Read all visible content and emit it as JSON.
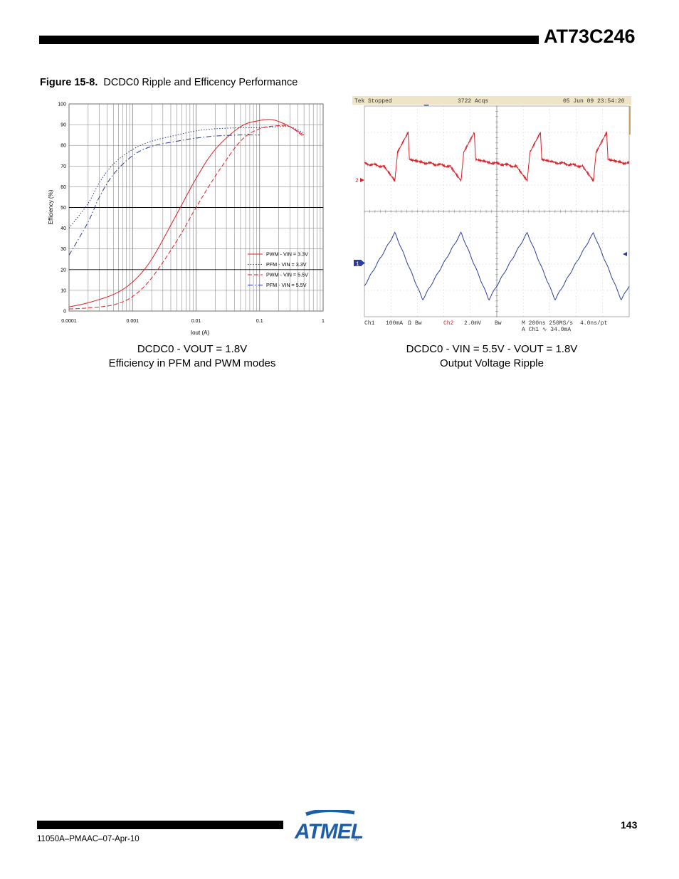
{
  "header": {
    "title": "AT73C246"
  },
  "figure": {
    "label": "Figure 15-8.",
    "title": "DCDC0 Ripple and Efficency Performance",
    "left_caption_line1": "DCDC0 - VOUT = 1.8V",
    "left_caption_line2": "Efficiency in PFM and PWM modes",
    "right_caption_line1": "DCDC0 - VIN = 5.5V - VOUT = 1.8V",
    "right_caption_line2": "Output Voltage Ripple"
  },
  "chart_data": [
    {
      "type": "line",
      "xlabel": "Iout (A)",
      "ylabel": "Efficiency (%)",
      "x_scale": "log",
      "xlim": [
        0.0001,
        1
      ],
      "ylim": [
        0,
        100
      ],
      "x_ticks": [
        "0.0001",
        "0.001",
        "0.01",
        "0.1",
        "1"
      ],
      "y_ticks": [
        "0",
        "10",
        "20",
        "30",
        "40",
        "50",
        "60",
        "70",
        "80",
        "90",
        "100"
      ],
      "grid": true,
      "legend": "bottom-right",
      "series": [
        {
          "name": "PWM - VIN = 3.3V",
          "color": "#e31e24",
          "dash": "solid",
          "x": [
            0.0001,
            0.0002,
            0.0005,
            0.001,
            0.002,
            0.005,
            0.01,
            0.02,
            0.05,
            0.1,
            0.15,
            0.2,
            0.3,
            0.5
          ],
          "y": [
            2,
            4,
            8,
            14,
            25,
            47,
            64,
            78,
            89,
            92,
            92.5,
            91.5,
            89,
            85
          ]
        },
        {
          "name": "PFM - VIN = 3.3V",
          "color": "#2b3990",
          "dash": "dot",
          "x": [
            0.0001,
            0.0002,
            0.0003,
            0.0005,
            0.001,
            0.002,
            0.005,
            0.01,
            0.02,
            0.05,
            0.1,
            0.2,
            0.3,
            0.5
          ],
          "y": [
            40,
            52,
            62,
            71,
            78,
            82,
            85,
            87,
            88,
            88.5,
            88.5,
            89,
            89,
            86
          ]
        },
        {
          "name": "PWM - VIN = 5.5V",
          "color": "#e31e24",
          "dash": "dash",
          "x": [
            0.0001,
            0.0002,
            0.0005,
            0.001,
            0.002,
            0.005,
            0.01,
            0.02,
            0.05,
            0.1,
            0.2,
            0.3,
            0.5
          ],
          "y": [
            1,
            1.5,
            3,
            7,
            16,
            34,
            50,
            65,
            82,
            88,
            89.5,
            89,
            84
          ]
        },
        {
          "name": "PFM - VIN = 5.5V",
          "color": "#2b3990",
          "dash": "dashdot",
          "x": [
            0.0001,
            0.0002,
            0.0003,
            0.0005,
            0.001,
            0.002,
            0.005,
            0.01,
            0.02,
            0.05,
            0.1
          ],
          "y": [
            27,
            43,
            55,
            66,
            75,
            79.5,
            82,
            83.5,
            84.5,
            85,
            85
          ]
        }
      ]
    },
    {
      "type": "line",
      "header": {
        "brand": "Tek",
        "state": "Stopped",
        "acqs": "3722 Acqs",
        "timestamp": "05 Jun 09 23:54:20"
      },
      "footer": {
        "ch1": "Ch1",
        "ch1_scale": "100mA",
        "ch1_coupling": "Ω",
        "ch1_bw": "Bw",
        "ch2": "Ch2",
        "ch2_scale": "2.0mV",
        "ch2_bw": "Bw",
        "timebase": "M 200ns 250MS/s",
        "per_point": "4.0ns/pt",
        "trigger": "A  Ch1  ∿  34.0mA"
      },
      "markers": {
        "ch2": "2",
        "ch1": "1"
      },
      "series": [
        {
          "name": "Ch2",
          "color": "#d7232a",
          "description": "output voltage ripple",
          "waveform": "sawtooth with decaying spike",
          "periods": 4
        },
        {
          "name": "Ch1",
          "color": "#2c3da0",
          "description": "inductor current",
          "waveform": "triangle",
          "periods": 4
        }
      ]
    }
  ],
  "footer": {
    "page_number": "143",
    "doc_code": "11050A–PMAAC–07-Apr-10",
    "logo_text": "ATMEL",
    "logo_reg": "®"
  }
}
